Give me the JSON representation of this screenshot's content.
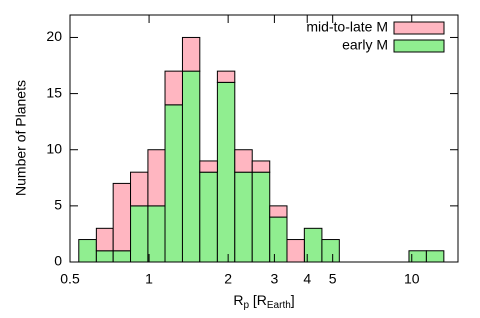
{
  "chart_data": {
    "type": "histogram",
    "stacked": true,
    "xlabel_parts": [
      {
        "text": "R"
      },
      {
        "text": "p",
        "sub": true
      },
      {
        "text": " [R"
      },
      {
        "text": "Earth",
        "sub": true
      },
      {
        "text": "]"
      }
    ],
    "ylabel": "Number of Planets",
    "bins": [
      0.54,
      0.63,
      0.73,
      0.85,
      0.99,
      1.15,
      1.34,
      1.56,
      1.82,
      2.12,
      2.47,
      2.88,
      3.35,
      3.9,
      4.55,
      5.3,
      6.17,
      7.19,
      8.38,
      9.76,
      11.37,
      13.25
    ],
    "series": [
      {
        "name": "early M",
        "color": "#90ee90",
        "values": [
          2,
          1,
          1,
          5,
          5,
          14,
          17,
          8,
          16,
          8,
          8,
          4,
          0,
          3,
          2,
          0,
          0,
          0,
          0,
          1,
          1
        ]
      },
      {
        "name": "mid-to-late M",
        "color": "#ffb6c1",
        "values": [
          0,
          2,
          6,
          3,
          5,
          3,
          3,
          1,
          1,
          2,
          1,
          1,
          2,
          0,
          0,
          0,
          0,
          0,
          0,
          0,
          0
        ]
      }
    ],
    "xscale": "log",
    "xlim": [
      0.5,
      15
    ],
    "xticks": [
      0.5,
      1,
      2,
      3,
      4,
      5,
      10
    ],
    "ylim": [
      0,
      22
    ],
    "yticks": [
      0,
      5,
      10,
      15,
      20
    ],
    "legend": "top-right"
  }
}
